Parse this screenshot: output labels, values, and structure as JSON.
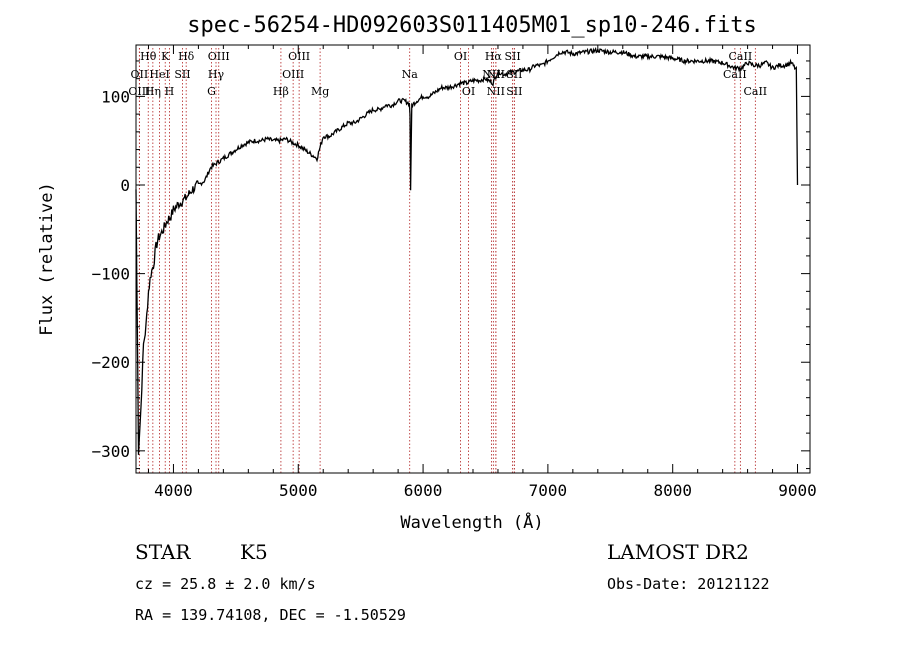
{
  "chart_data": {
    "type": "line",
    "title": "spec-56254-HD092603S011405M01_sp10-246.fits",
    "xlabel": "Wavelength (Å)",
    "ylabel": "Flux (relative)",
    "xlim": [
      3700,
      9100
    ],
    "ylim": [
      -325,
      158
    ],
    "xticks": [
      4000,
      5000,
      6000,
      7000,
      8000,
      9000
    ],
    "yticks": [
      -300,
      -200,
      -100,
      0,
      100
    ],
    "line_color": "#000000",
    "marker_color": "#b22222",
    "series": [
      {
        "x": [
          3700,
          3720,
          3740,
          3760,
          3780,
          3800,
          3820,
          3840,
          3860,
          3880,
          3900,
          3920,
          3950,
          3980,
          4000,
          4050,
          4100,
          4150,
          4200,
          4250,
          4300,
          4350,
          4400,
          4450,
          4500,
          4550,
          4600,
          4650,
          4700,
          4750,
          4800,
          4850,
          4900,
          4950,
          5000,
          5050,
          5100,
          5150,
          5200,
          5250,
          5300,
          5350,
          5400,
          5450,
          5500,
          5550,
          5600,
          5650,
          5700,
          5750,
          5800,
          5850,
          5890,
          5895,
          5900,
          5910,
          5950,
          6000,
          6050,
          6100,
          6150,
          6200,
          6250,
          6300,
          6350,
          6400,
          6450,
          6500,
          6560,
          6600,
          6650,
          6700,
          6750,
          6800,
          6850,
          6900,
          6950,
          7000,
          7050,
          7100,
          7150,
          7200,
          7300,
          7400,
          7500,
          7600,
          7700,
          7800,
          7900,
          8000,
          8100,
          8200,
          8300,
          8400,
          8500,
          8550,
          8600,
          8650,
          8700,
          8750,
          8800,
          8850,
          8900,
          8950,
          8990,
          9000
        ],
        "y": [
          -5,
          -300,
          -250,
          -180,
          -160,
          -120,
          -100,
          -90,
          -70,
          -60,
          -55,
          -50,
          -40,
          -35,
          -28,
          -20,
          -15,
          -5,
          0,
          5,
          20,
          25,
          30,
          35,
          40,
          45,
          48,
          50,
          50,
          52,
          50,
          50,
          52,
          48,
          45,
          40,
          35,
          30,
          55,
          55,
          60,
          65,
          70,
          70,
          75,
          80,
          85,
          85,
          90,
          90,
          95,
          95,
          92,
          80,
          -5,
          90,
          95,
          100,
          100,
          105,
          110,
          110,
          112,
          115,
          115,
          118,
          118,
          120,
          115,
          128,
          125,
          127,
          128,
          130,
          130,
          135,
          135,
          140,
          145,
          150,
          150,
          148,
          150,
          152,
          150,
          150,
          145,
          145,
          145,
          143,
          140,
          140,
          140,
          138,
          132,
          132,
          138,
          135,
          135,
          138,
          132,
          135,
          135,
          138,
          130,
          0
        ]
      }
    ],
    "lines": [
      {
        "name": "Hθ",
        "w": 3798,
        "row": 0
      },
      {
        "name": "K",
        "w": 3934,
        "row": 0
      },
      {
        "name": "Hδ",
        "w": 4102,
        "row": 0
      },
      {
        "name": "OIII",
        "w": 4363,
        "row": 0
      },
      {
        "name": "OIII",
        "w": 5007,
        "row": 0
      },
      {
        "name": "OI",
        "w": 6300,
        "row": 0
      },
      {
        "name": "Hα",
        "w": 6563,
        "row": 0
      },
      {
        "name": "SII",
        "w": 6717,
        "row": 0
      },
      {
        "name": "CaII",
        "w": 8542,
        "row": 0
      },
      {
        "name": "OII",
        "w": 3727,
        "row": 1
      },
      {
        "name": "HeI",
        "w": 3889,
        "row": 1
      },
      {
        "name": "SII",
        "w": 4072,
        "row": 1
      },
      {
        "name": "Hγ",
        "w": 4341,
        "row": 1
      },
      {
        "name": "OIII",
        "w": 4959,
        "row": 1
      },
      {
        "name": "Na",
        "w": 5893,
        "row": 1
      },
      {
        "name": "NII",
        "w": 6548,
        "row": 1
      },
      {
        "name": "NII",
        "w": 6583,
        "row": 1
      },
      {
        "name": "SII",
        "w": 6731,
        "row": 1
      },
      {
        "name": "CaII",
        "w": 8498,
        "row": 1
      },
      {
        "name": "OIII",
        "w": 3727,
        "row": 2
      },
      {
        "name": "Hη",
        "w": 3835,
        "row": 2
      },
      {
        "name": "H",
        "w": 3968,
        "row": 2
      },
      {
        "name": "G",
        "w": 4305,
        "row": 2
      },
      {
        "name": "Hβ",
        "w": 4861,
        "row": 2
      },
      {
        "name": "Mg",
        "w": 5175,
        "row": 2
      },
      {
        "name": "OI",
        "w": 6364,
        "row": 2
      },
      {
        "name": "NII",
        "w": 6583,
        "row": 2
      },
      {
        "name": "SII",
        "w": 6731,
        "row": 2
      },
      {
        "name": "CaII",
        "w": 8662,
        "row": 2
      }
    ]
  },
  "info": {
    "class": "STAR",
    "subclass": "K5",
    "survey": "LAMOST DR2",
    "cz": "cz = 25.8 ± 2.0 km/s",
    "obs_date": "Obs-Date: 20121122",
    "radec": "RA = 139.74108, DEC =  -1.50529"
  }
}
